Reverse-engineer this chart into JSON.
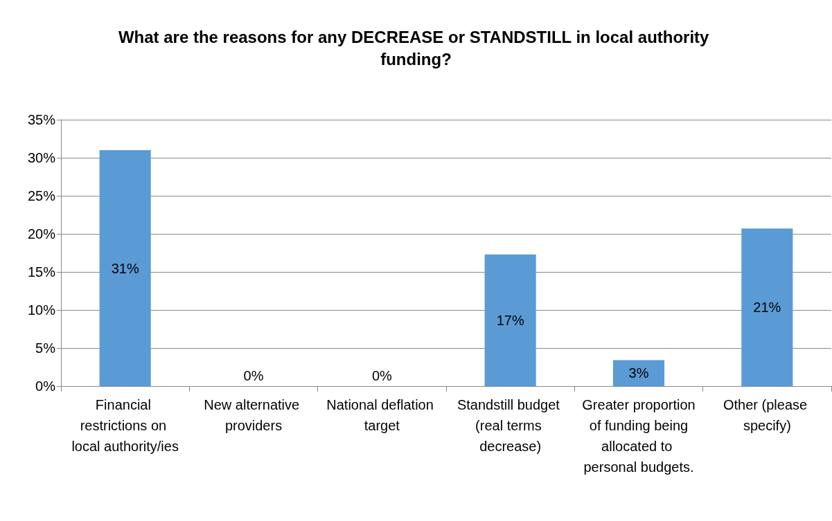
{
  "chart_data": {
    "type": "bar",
    "title": "What are the reasons for any DECREASE or STANDSTILL in local authority funding?",
    "categories": [
      "Financial restrictions on local authority/ies",
      "New alternative providers",
      "National deflation target",
      "Standstill budget (real terms decrease)",
      "Greater proportion of funding being allocated to personal budgets.",
      "Other (please specify)"
    ],
    "values": [
      31,
      0,
      0,
      17.3,
      3.4,
      20.7
    ],
    "value_labels": [
      "31%",
      "0%",
      "0%",
      "17%",
      "3%",
      "21%"
    ],
    "color": "#5b9bd5",
    "ylim": [
      0,
      35
    ],
    "yticks": [
      {
        "value": 0,
        "label": "0%"
      },
      {
        "value": 5,
        "label": "5%"
      },
      {
        "value": 10,
        "label": "10%"
      },
      {
        "value": 15,
        "label": "15%"
      },
      {
        "value": 20,
        "label": "20%"
      },
      {
        "value": 25,
        "label": "25%"
      },
      {
        "value": 30,
        "label": "30%"
      },
      {
        "value": 35,
        "label": "35%"
      }
    ],
    "grid": "y"
  }
}
